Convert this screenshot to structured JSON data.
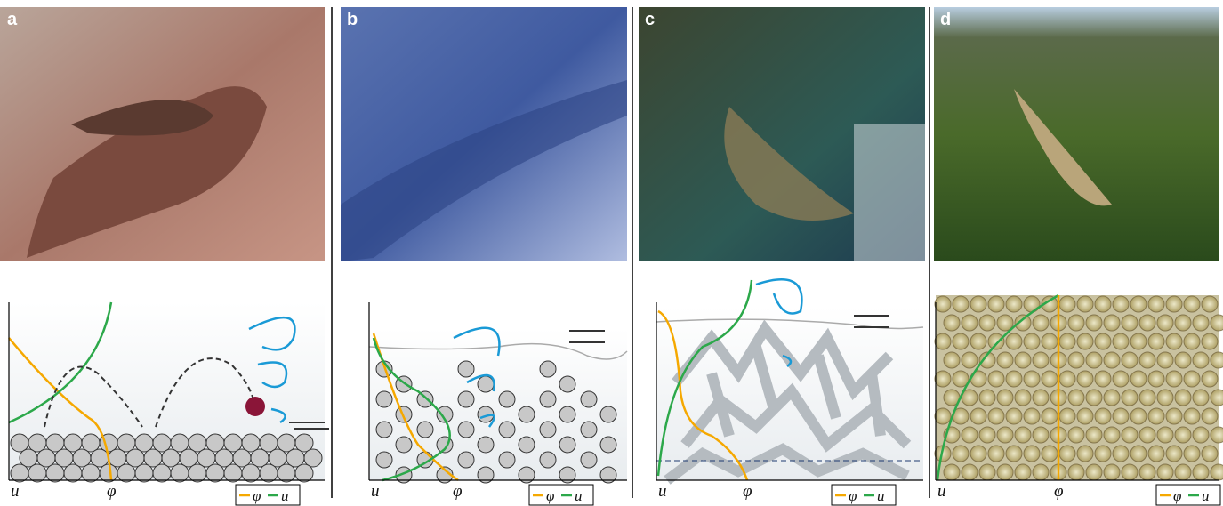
{
  "panels": [
    {
      "label": "a",
      "axis_left": "u",
      "axis_mid": "φ",
      "legend": [
        "φ",
        "u"
      ]
    },
    {
      "label": "b",
      "axis_left": "u",
      "axis_mid": "φ",
      "legend": [
        "φ",
        "u"
      ]
    },
    {
      "label": "c",
      "axis_left": "u",
      "axis_mid": "φ",
      "legend": [
        "φ",
        "u"
      ]
    },
    {
      "label": "d",
      "axis_left": "u",
      "axis_mid": "φ",
      "legend": [
        "φ",
        "u"
      ]
    }
  ]
}
